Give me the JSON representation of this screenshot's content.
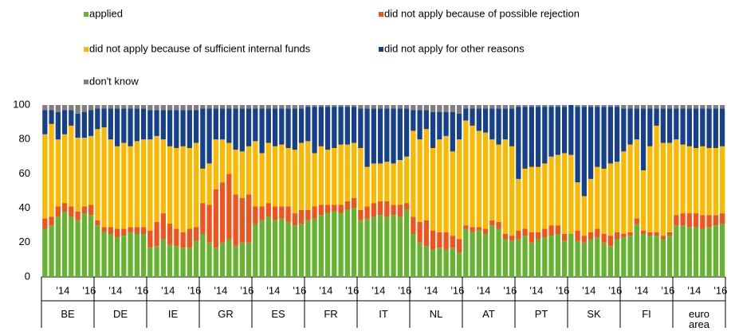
{
  "chart_data": {
    "type": "bar",
    "stacked": true,
    "series": [
      {
        "name": "applied",
        "color": "#65b32e"
      },
      {
        "name": "did not apply because of possible rejection",
        "color": "#f0541e"
      },
      {
        "name": "did not apply because of sufficient internal funds",
        "color": "#fbb800"
      },
      {
        "name": "did not apply for other reasons",
        "color": "#17408b"
      },
      {
        "name": "don't know",
        "color": "#7f7f7f"
      }
    ],
    "ylim": [
      0,
      100
    ],
    "yticks": [
      0,
      20,
      40,
      60,
      80,
      100
    ],
    "groups": [
      {
        "label": "BE",
        "categories": [
          null,
          null,
          null,
          "'14",
          null,
          null,
          null,
          "'16"
        ],
        "bars": [
          [
            28,
            6,
            49,
            14,
            3
          ],
          [
            30,
            5,
            54,
            8,
            3
          ],
          [
            35,
            6,
            39,
            16,
            4
          ],
          [
            38,
            5,
            40,
            14,
            3
          ],
          [
            35,
            6,
            47,
            9,
            3
          ],
          [
            33,
            5,
            43,
            14,
            5
          ],
          [
            37,
            4,
            40,
            15,
            4
          ],
          [
            36,
            6,
            40,
            15,
            3
          ]
        ]
      },
      {
        "label": "DE",
        "categories": [
          null,
          null,
          null,
          "'14",
          null,
          null,
          null,
          "'16"
        ],
        "bars": [
          [
            30,
            3,
            53,
            12,
            2
          ],
          [
            26,
            3,
            58,
            11,
            2
          ],
          [
            25,
            4,
            51,
            18,
            2
          ],
          [
            23,
            5,
            48,
            22,
            2
          ],
          [
            24,
            4,
            50,
            20,
            2
          ],
          [
            26,
            3,
            47,
            22,
            2
          ],
          [
            25,
            4,
            50,
            19,
            2
          ],
          [
            25,
            4,
            51,
            18,
            2
          ]
        ]
      },
      {
        "label": "IE",
        "categories": [
          null,
          null,
          null,
          "'14",
          null,
          null,
          null,
          "'16"
        ],
        "bars": [
          [
            17,
            10,
            53,
            17,
            3
          ],
          [
            18,
            14,
            50,
            15,
            3
          ],
          [
            22,
            15,
            43,
            17,
            3
          ],
          [
            19,
            12,
            45,
            21,
            3
          ],
          [
            18,
            10,
            47,
            22,
            3
          ],
          [
            17,
            9,
            50,
            21,
            3
          ],
          [
            17,
            11,
            47,
            22,
            3
          ],
          [
            21,
            8,
            49,
            19,
            3
          ]
        ]
      },
      {
        "label": "GR",
        "categories": [
          null,
          null,
          null,
          "'14",
          null,
          null,
          null,
          "'16"
        ],
        "bars": [
          [
            25,
            18,
            20,
            35,
            2
          ],
          [
            20,
            22,
            24,
            32,
            2
          ],
          [
            17,
            34,
            29,
            18,
            2
          ],
          [
            20,
            35,
            25,
            18,
            2
          ],
          [
            22,
            38,
            18,
            20,
            2
          ],
          [
            18,
            30,
            26,
            24,
            2
          ],
          [
            20,
            26,
            27,
            25,
            2
          ],
          [
            20,
            28,
            28,
            22,
            2
          ]
        ]
      },
      {
        "label": "ES",
        "categories": [
          null,
          null,
          null,
          "'14",
          null,
          null,
          null,
          "'16"
        ],
        "bars": [
          [
            31,
            10,
            38,
            19,
            2
          ],
          [
            33,
            8,
            31,
            26,
            2
          ],
          [
            35,
            8,
            35,
            20,
            2
          ],
          [
            33,
            8,
            35,
            22,
            2
          ],
          [
            34,
            7,
            36,
            21,
            2
          ],
          [
            32,
            9,
            34,
            23,
            2
          ],
          [
            30,
            7,
            37,
            24,
            2
          ],
          [
            31,
            8,
            39,
            20,
            2
          ]
        ]
      },
      {
        "label": "FR",
        "categories": [
          null,
          null,
          null,
          "'14",
          null,
          null,
          null,
          "'16"
        ],
        "bars": [
          [
            33,
            6,
            40,
            20,
            1
          ],
          [
            34,
            7,
            31,
            27,
            1
          ],
          [
            36,
            6,
            34,
            23,
            1
          ],
          [
            37,
            5,
            32,
            25,
            1
          ],
          [
            38,
            4,
            33,
            24,
            1
          ],
          [
            37,
            5,
            35,
            22,
            1
          ],
          [
            39,
            5,
            33,
            22,
            1
          ],
          [
            40,
            6,
            32,
            21,
            1
          ]
        ]
      },
      {
        "label": "IT",
        "categories": [
          null,
          null,
          null,
          "'14",
          null,
          null,
          null,
          "'16"
        ],
        "bars": [
          [
            33,
            6,
            36,
            23,
            2
          ],
          [
            34,
            7,
            23,
            34,
            2
          ],
          [
            35,
            8,
            23,
            32,
            2
          ],
          [
            36,
            8,
            22,
            32,
            2
          ],
          [
            35,
            9,
            23,
            31,
            2
          ],
          [
            36,
            6,
            24,
            32,
            2
          ],
          [
            35,
            7,
            26,
            30,
            2
          ],
          [
            39,
            4,
            27,
            28,
            2
          ]
        ]
      },
      {
        "label": "NL",
        "categories": [
          null,
          null,
          null,
          "'14",
          null,
          null,
          null,
          "'16"
        ],
        "bars": [
          [
            25,
            10,
            50,
            12,
            3
          ],
          [
            20,
            12,
            48,
            17,
            3
          ],
          [
            18,
            15,
            53,
            11,
            3
          ],
          [
            16,
            11,
            48,
            21,
            4
          ],
          [
            17,
            9,
            54,
            16,
            4
          ],
          [
            16,
            10,
            56,
            14,
            4
          ],
          [
            17,
            7,
            49,
            23,
            4
          ],
          [
            14,
            8,
            58,
            15,
            5
          ]
        ]
      },
      {
        "label": "AT",
        "categories": [
          null,
          null,
          null,
          "'14",
          null,
          null,
          null,
          "'16"
        ],
        "bars": [
          [
            28,
            2,
            61,
            7,
            2
          ],
          [
            26,
            3,
            59,
            10,
            2
          ],
          [
            27,
            2,
            56,
            13,
            2
          ],
          [
            25,
            3,
            56,
            14,
            2
          ],
          [
            30,
            3,
            47,
            18,
            2
          ],
          [
            28,
            4,
            45,
            21,
            2
          ],
          [
            22,
            3,
            55,
            18,
            2
          ],
          [
            21,
            3,
            52,
            22,
            2
          ]
        ]
      },
      {
        "label": "PT",
        "categories": [
          null,
          null,
          null,
          "'14",
          null,
          null,
          null,
          "'16"
        ],
        "bars": [
          [
            22,
            5,
            30,
            42,
            1
          ],
          [
            24,
            4,
            35,
            36,
            1
          ],
          [
            20,
            6,
            38,
            35,
            1
          ],
          [
            22,
            4,
            38,
            35,
            1
          ],
          [
            23,
            5,
            38,
            33,
            1
          ],
          [
            24,
            6,
            40,
            29,
            1
          ],
          [
            25,
            5,
            41,
            28,
            1
          ],
          [
            21,
            4,
            47,
            27,
            1
          ]
        ]
      },
      {
        "label": "SK",
        "categories": [
          null,
          null,
          null,
          "'14",
          null,
          null,
          null,
          "'16"
        ],
        "bars": [
          [
            25,
            0,
            46,
            29,
            0
          ],
          [
            21,
            6,
            28,
            44,
            1
          ],
          [
            20,
            4,
            23,
            52,
            1
          ],
          [
            22,
            4,
            31,
            42,
            1
          ],
          [
            23,
            5,
            36,
            35,
            1
          ],
          [
            20,
            5,
            38,
            36,
            1
          ],
          [
            18,
            6,
            42,
            33,
            1
          ],
          [
            22,
            4,
            41,
            32,
            1
          ]
        ]
      },
      {
        "label": "FI",
        "categories": [
          null,
          null,
          null,
          "'14",
          null,
          null,
          null,
          "'16"
        ],
        "bars": [
          [
            23,
            2,
            48,
            25,
            2
          ],
          [
            24,
            2,
            51,
            21,
            2
          ],
          [
            31,
            3,
            46,
            18,
            2
          ],
          [
            25,
            2,
            35,
            36,
            2
          ],
          [
            24,
            2,
            50,
            22,
            2
          ],
          [
            24,
            2,
            62,
            10,
            2
          ],
          [
            22,
            2,
            54,
            20,
            2
          ],
          [
            24,
            2,
            52,
            20,
            2
          ]
        ]
      },
      {
        "label": "euro area",
        "categories": [
          null,
          null,
          null,
          "'14",
          null,
          null,
          null,
          "'16"
        ],
        "bars": [
          [
            30,
            6,
            44,
            18,
            2
          ],
          [
            30,
            7,
            40,
            21,
            2
          ],
          [
            29,
            8,
            39,
            22,
            2
          ],
          [
            29,
            8,
            38,
            23,
            2
          ],
          [
            28,
            8,
            40,
            22,
            2
          ],
          [
            29,
            7,
            39,
            23,
            2
          ],
          [
            30,
            6,
            39,
            23,
            2
          ],
          [
            31,
            6,
            39,
            22,
            2
          ]
        ]
      }
    ]
  }
}
